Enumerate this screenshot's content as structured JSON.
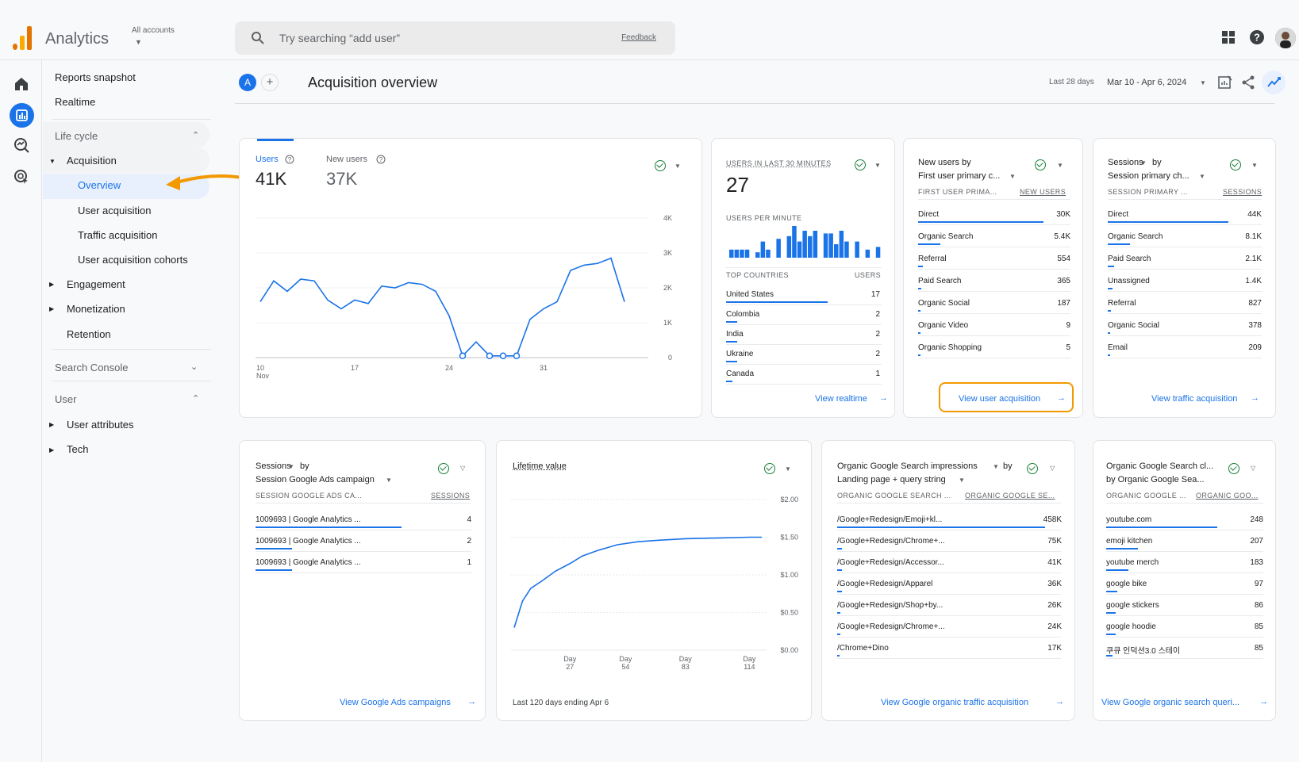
{
  "app": {
    "name": "Analytics",
    "account_label": "All accounts"
  },
  "search": {
    "placeholder": "Try searching “add user”",
    "feedback": "Feedback"
  },
  "colors": {
    "accent": "#1a73e8",
    "highlight": "#f29900",
    "ok": "#188038"
  },
  "nav": {
    "reports_snapshot": "Reports snapshot",
    "realtime": "Realtime",
    "life_cycle": "Life cycle",
    "acquisition": "Acquisition",
    "overview": "Overview",
    "user_acquisition": "User acquisition",
    "traffic_acquisition": "Traffic acquisition",
    "user_acquisition_cohorts": "User acquisition cohorts",
    "engagement": "Engagement",
    "monetization": "Monetization",
    "retention": "Retention",
    "search_console": "Search Console",
    "user": "User",
    "user_attributes": "User attributes",
    "tech": "Tech"
  },
  "header": {
    "property_badge": "A",
    "title": "Acquisition overview",
    "range_label": "Last 28 days",
    "range_value": "Mar 10 - Apr 6, 2024"
  },
  "users_card": {
    "users_label": "Users",
    "users_value": "41K",
    "new_users_label": "New users",
    "new_users_value": "37K",
    "y_ticks": [
      "4K",
      "3K",
      "2K",
      "1K",
      "0"
    ],
    "x_ticks": [
      "10",
      "17",
      "24",
      "31"
    ],
    "x_sub": "Nov"
  },
  "realtime_card": {
    "title": "USERS IN LAST 30 MINUTES",
    "value": "27",
    "per_minute_label": "USERS PER MINUTE",
    "col1": "TOP COUNTRIES",
    "col2": "USERS",
    "rows": [
      {
        "name": "United States",
        "value": "17"
      },
      {
        "name": "Colombia",
        "value": "2"
      },
      {
        "name": "India",
        "value": "2"
      },
      {
        "name": "Ukraine",
        "value": "2"
      },
      {
        "name": "Canada",
        "value": "1"
      }
    ],
    "link": "View realtime"
  },
  "new_users_card": {
    "title1": "New users by",
    "title2": "First user primary c...",
    "col1": "FIRST USER PRIMA...",
    "col2": "NEW USERS",
    "rows": [
      {
        "name": "Direct",
        "value": "30K"
      },
      {
        "name": "Organic Search",
        "value": "5.4K"
      },
      {
        "name": "Referral",
        "value": "554"
      },
      {
        "name": "Paid Search",
        "value": "365"
      },
      {
        "name": "Organic Social",
        "value": "187"
      },
      {
        "name": "Organic Video",
        "value": "9"
      },
      {
        "name": "Organic Shopping",
        "value": "5"
      }
    ],
    "link": "View user acquisition"
  },
  "sessions_card": {
    "title1": "Sessions",
    "title1b": "by",
    "title2": "Session primary ch...",
    "col1": "SESSION PRIMARY ...",
    "col2": "SESSIONS",
    "rows": [
      {
        "name": "Direct",
        "value": "44K"
      },
      {
        "name": "Organic Search",
        "value": "8.1K"
      },
      {
        "name": "Paid Search",
        "value": "2.1K"
      },
      {
        "name": "Unassigned",
        "value": "1.4K"
      },
      {
        "name": "Referral",
        "value": "827"
      },
      {
        "name": "Organic Social",
        "value": "378"
      },
      {
        "name": "Email",
        "value": "209"
      }
    ],
    "link": "View traffic acquisition"
  },
  "ads_card": {
    "title1": "Sessions",
    "title1b": "by",
    "title2": "Session Google Ads campaign",
    "col1": "SESSION GOOGLE ADS CA...",
    "col2": "SESSIONS",
    "rows": [
      {
        "name": "1009693 | Google Analytics ...",
        "value": "4"
      },
      {
        "name": "1009693 | Google Analytics ...",
        "value": "2"
      },
      {
        "name": "1009693 | Google Analytics ...",
        "value": "1"
      }
    ],
    "link": "View Google Ads campaigns"
  },
  "ltv_card": {
    "title": "Lifetime value",
    "y_ticks": [
      "$2.00",
      "$1.50",
      "$1.00",
      "$0.50",
      "$0.00"
    ],
    "x_ticks": [
      {
        "a": "Day",
        "b": "27"
      },
      {
        "a": "Day",
        "b": "54"
      },
      {
        "a": "Day",
        "b": "83"
      },
      {
        "a": "Day",
        "b": "114"
      }
    ],
    "footer": "Last 120 days ending Apr 6"
  },
  "organic_card": {
    "title1": "Organic Google Search impressions",
    "title1b": "by",
    "title2": "Landing page + query string",
    "col1": "ORGANIC GOOGLE SEARCH ...",
    "col2": "ORGANIC GOOGLE SE...",
    "rows": [
      {
        "name": "/Google+Redesign/Emoji+kl...",
        "value": "458K"
      },
      {
        "name": "/Google+Redesign/Chrome+...",
        "value": "75K"
      },
      {
        "name": "/Google+Redesign/Accessor...",
        "value": "41K"
      },
      {
        "name": "/Google+Redesign/Apparel",
        "value": "36K"
      },
      {
        "name": "/Google+Redesign/Shop+by...",
        "value": "26K"
      },
      {
        "name": "/Google+Redesign/Chrome+...",
        "value": "24K"
      },
      {
        "name": "/Chrome+Dino",
        "value": "17K"
      }
    ],
    "link": "View Google organic traffic acquisition"
  },
  "query_card": {
    "title1": "Organic Google Search cl...",
    "title2": "by Organic Google Sea...",
    "col1": "ORGANIC GOOGLE ...",
    "col2": "ORGANIC GOO...",
    "rows": [
      {
        "name": "youtube.com",
        "value": "248"
      },
      {
        "name": "emoji kitchen",
        "value": "207"
      },
      {
        "name": "youtube merch",
        "value": "183"
      },
      {
        "name": "google bike",
        "value": "97"
      },
      {
        "name": "google stickers",
        "value": "86"
      },
      {
        "name": "google hoodie",
        "value": "85"
      },
      {
        "name": "쿠큐 인덕션3.0 스테이",
        "value": "85"
      }
    ],
    "link": "View Google organic search queri..."
  }
}
